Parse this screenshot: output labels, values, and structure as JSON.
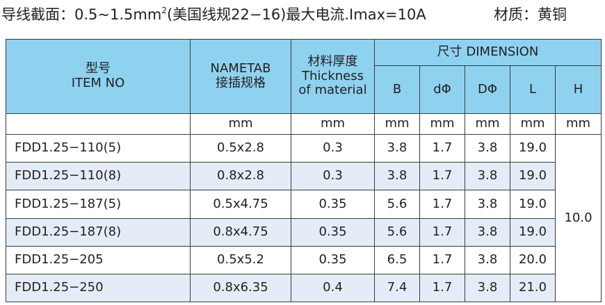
{
  "caption": {
    "spec_before": "导线截面：0.5~1.5mm",
    "spec_sup": "2",
    "spec_after": "(美国线规22−16)最大电流.Imax=10A",
    "material": "材质：黄铜"
  },
  "table": {
    "headers": {
      "item_zh": "型号",
      "item_en": "ITEM NO",
      "nametab_en": "NAMETAB",
      "nametab_zh": "接插规格",
      "thickness_zh": "材料厚度",
      "thickness_en1": "Thickness",
      "thickness_en2": "of material",
      "dimension": "尺寸 DIMENSION",
      "b": "B",
      "d_phi": "dΦ",
      "D_phi": "DΦ",
      "l": "L",
      "h": "H"
    },
    "units": [
      "mm",
      "mm",
      "mm",
      "mm",
      "mm",
      "mm",
      "mm"
    ],
    "rows": [
      {
        "model": "FDD1.25−110(5)",
        "nametab": "0.5x2.8",
        "thickness": "0.3",
        "b": "3.8",
        "d": "1.7",
        "D": "3.8",
        "l": "19.0"
      },
      {
        "model": "FDD1.25−110(8)",
        "nametab": "0.8x2.8",
        "thickness": "0.3",
        "b": "3.8",
        "d": "1.7",
        "D": "3.8",
        "l": "19.0"
      },
      {
        "model": "FDD1.25−187(5)",
        "nametab": "0.5x4.75",
        "thickness": "0.35",
        "b": "5.6",
        "d": "1.7",
        "D": "3.8",
        "l": "19.0"
      },
      {
        "model": "FDD1.25−187(8)",
        "nametab": "0.8x4.75",
        "thickness": "0.35",
        "b": "5.6",
        "d": "1.7",
        "D": "3.8",
        "l": "19.0"
      },
      {
        "model": "FDD1.25−205",
        "nametab": "0.5x5.2",
        "thickness": "0.35",
        "b": "6.5",
        "d": "1.7",
        "D": "3.8",
        "l": "20.0"
      },
      {
        "model": "FDD1.25−250",
        "nametab": "0.8x6.35",
        "thickness": "0.4",
        "b": "7.4",
        "d": "1.7",
        "D": "3.8",
        "l": "21.0"
      }
    ],
    "h_value": "10.0"
  },
  "colors": {
    "header_bg": "#8fd2ef",
    "shaded_row_bg": "#e4ecf7",
    "border": "#3a3a3a"
  }
}
